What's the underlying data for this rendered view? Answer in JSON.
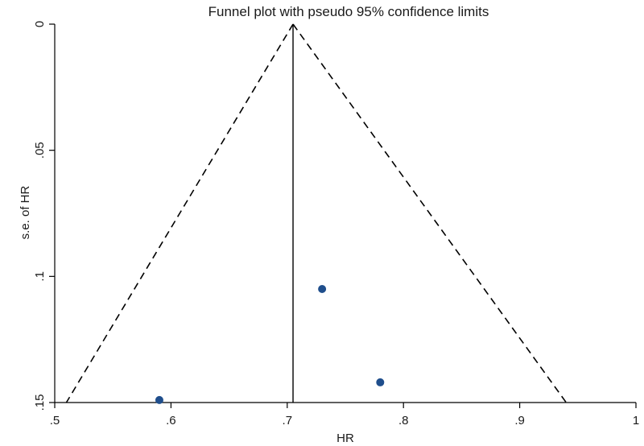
{
  "chart_data": {
    "type": "scatter",
    "title": "Funnel plot with pseudo 95% confidence limits",
    "xlabel": "HR",
    "ylabel": "s.e. of HR",
    "xlim": [
      0.5,
      1.0
    ],
    "ylim": [
      0,
      0.15
    ],
    "y_reversed": true,
    "x_ticks": [
      0.5,
      0.6,
      0.7,
      0.8,
      0.9,
      1.0
    ],
    "x_tick_labels": [
      ".5",
      ".6",
      ".7",
      ".8",
      ".9",
      "1"
    ],
    "y_ticks": [
      0,
      0.05,
      0.1,
      0.15
    ],
    "y_tick_labels": [
      "0",
      ".05",
      ".1",
      ".15"
    ],
    "grid": false,
    "pooled_estimate": 0.705,
    "pseudo_ci_limits": {
      "apex": {
        "x": 0.705,
        "y": 0
      },
      "lower_base": {
        "x": 0.51,
        "y": 0.15
      },
      "upper_base": {
        "x": 0.94,
        "y": 0.15
      }
    },
    "points": [
      {
        "x": 0.73,
        "y": 0.105
      },
      {
        "x": 0.78,
        "y": 0.142
      },
      {
        "x": 0.59,
        "y": 0.149
      }
    ],
    "colors": {
      "points": "#1f4e8c",
      "lines": "#000000"
    }
  }
}
